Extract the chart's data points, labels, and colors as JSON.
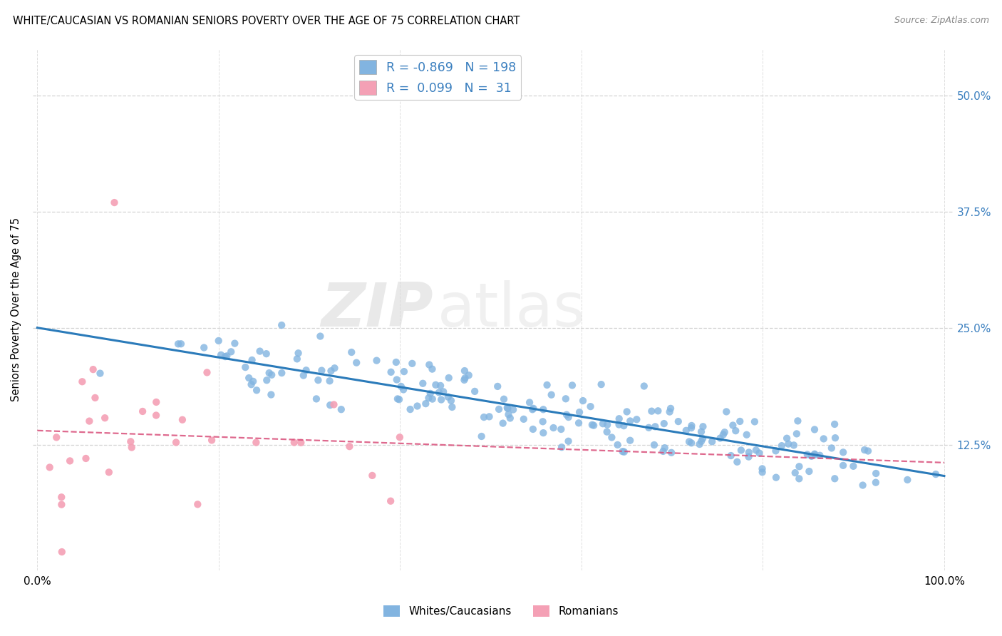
{
  "title": "WHITE/CAUCASIAN VS ROMANIAN SENIORS POVERTY OVER THE AGE OF 75 CORRELATION CHART",
  "source": "Source: ZipAtlas.com",
  "ylabel": "Seniors Poverty Over the Age of 75",
  "ytick_labels": [
    "12.5%",
    "25.0%",
    "37.5%",
    "50.0%"
  ],
  "ytick_values": [
    0.125,
    0.25,
    0.375,
    0.5
  ],
  "blue_color": "#82b4e0",
  "pink_color": "#f4a0b5",
  "blue_line_color": "#2b7bba",
  "pink_line_color": "#d94f7a",
  "legend_text_color": "#3a7fbf",
  "watermark_zip": "ZIP",
  "watermark_atlas": "atlas",
  "blue_R": -0.869,
  "blue_N": 198,
  "pink_R": 0.099,
  "pink_N": 31,
  "background_color": "#ffffff",
  "grid_color": "#d0d0d0",
  "title_fontsize": 11,
  "axis_fontsize": 10,
  "ylim_min": -0.01,
  "ylim_max": 0.55,
  "xlim_min": -0.005,
  "xlim_max": 1.01
}
